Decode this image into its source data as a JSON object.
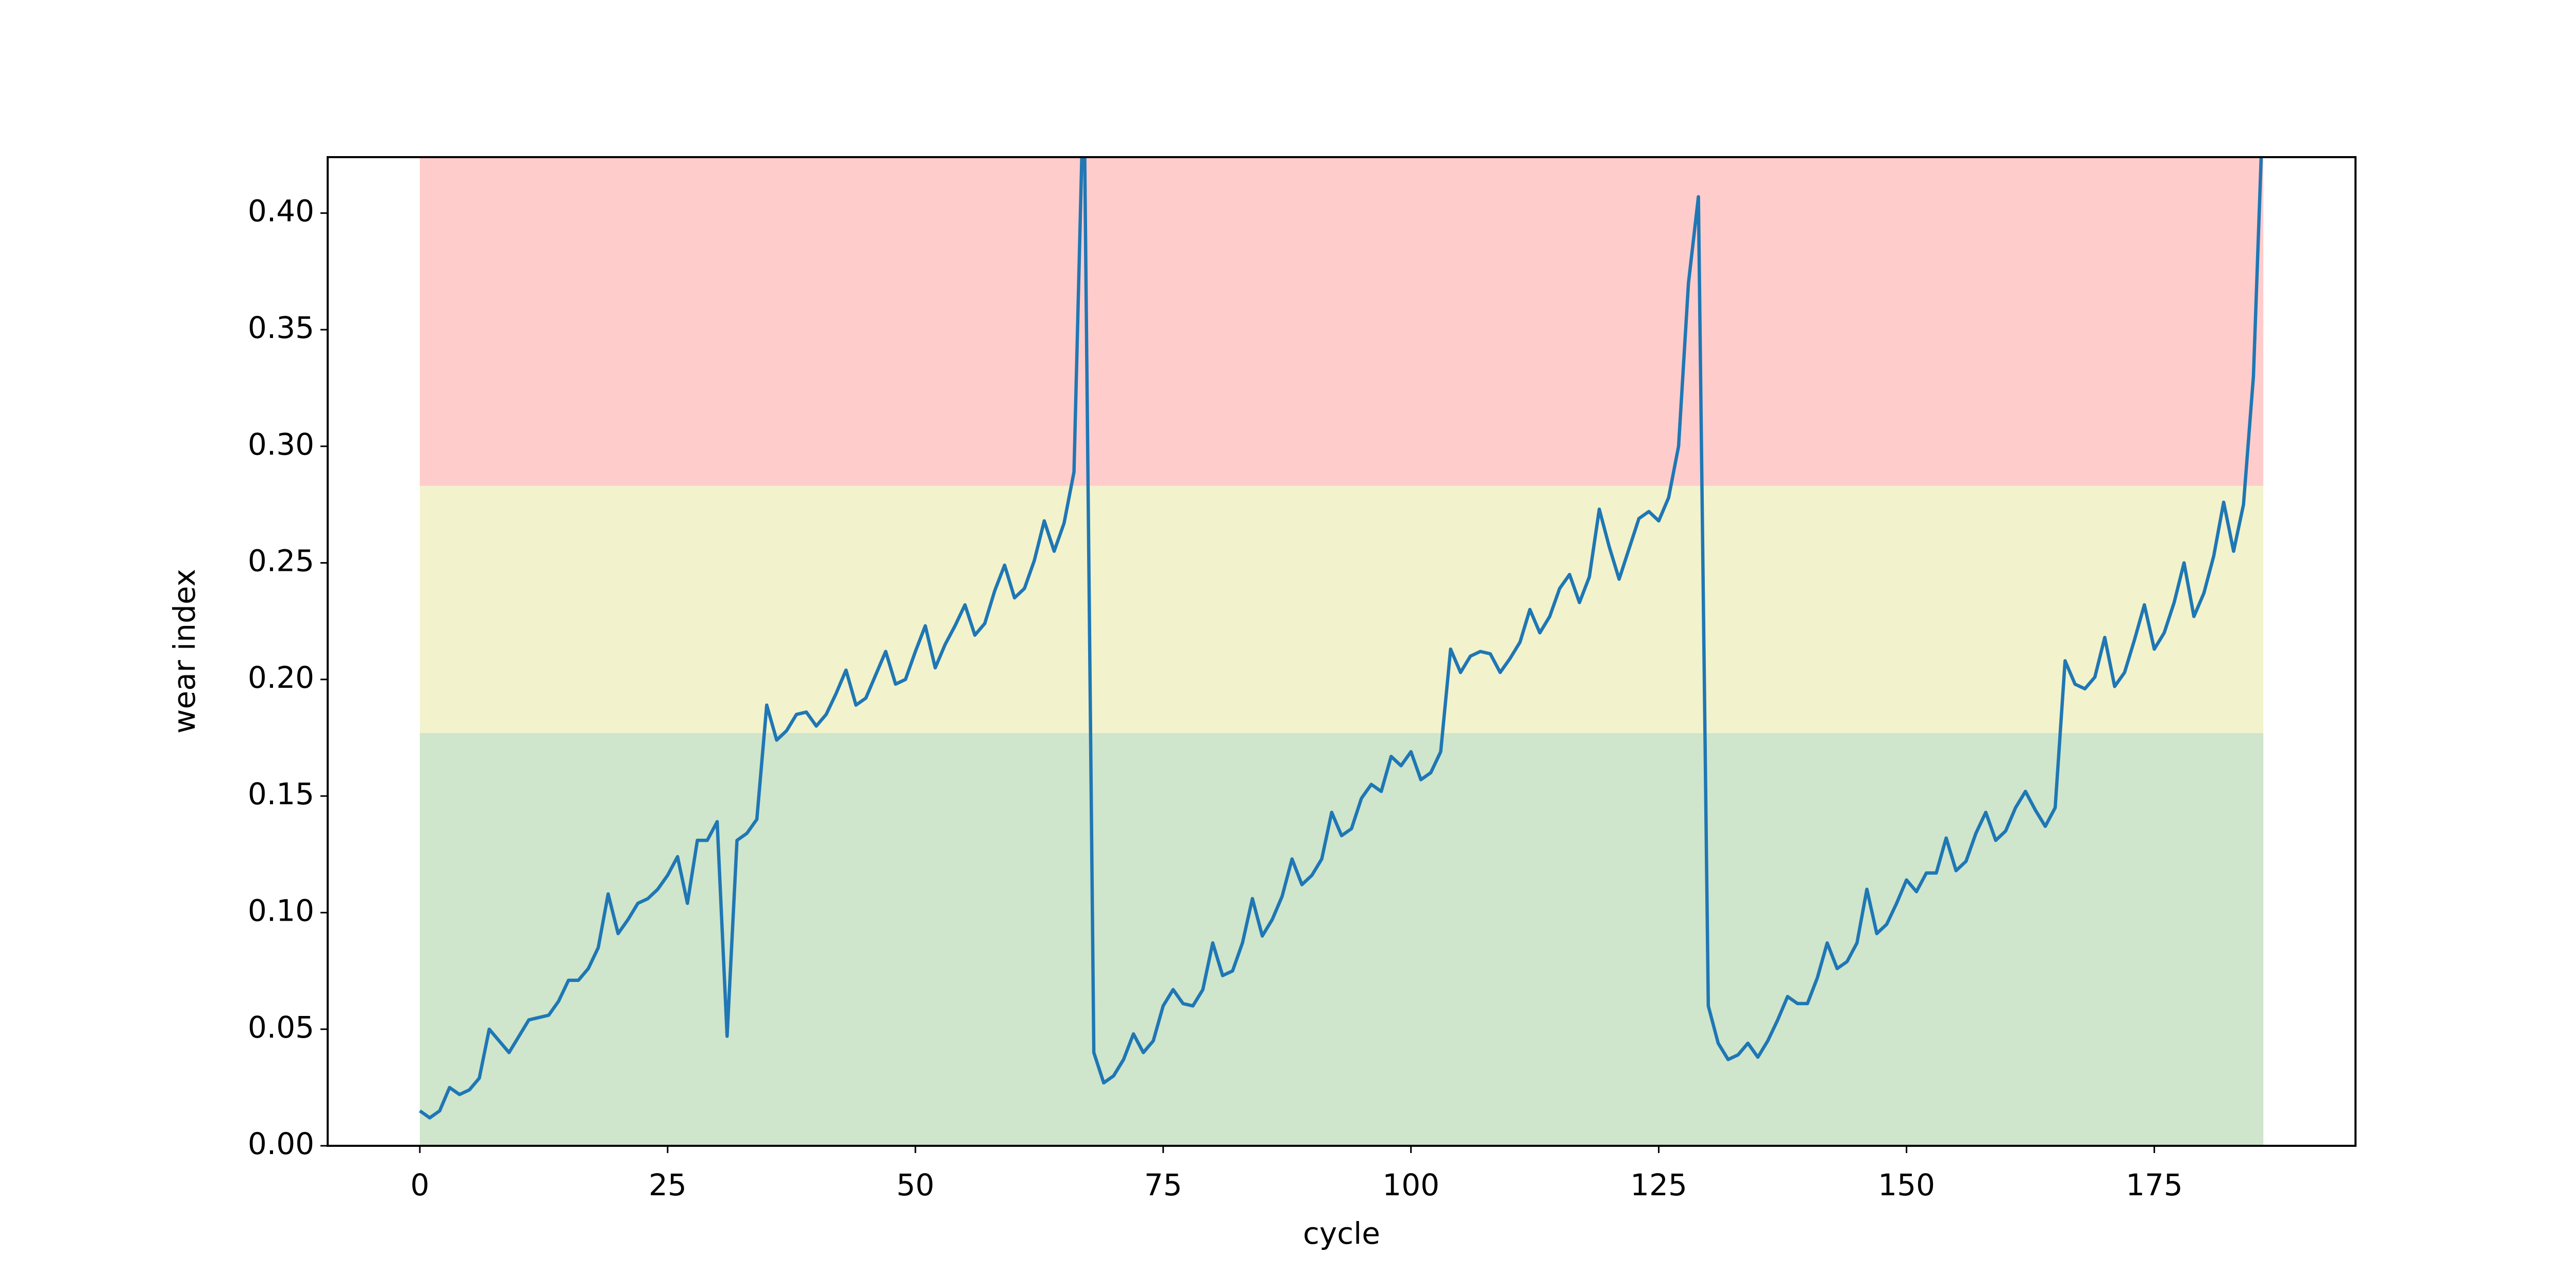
{
  "chart_data": {
    "type": "line",
    "xlabel": "cycle",
    "ylabel": "wear index",
    "x": [
      0,
      1,
      2,
      3,
      4,
      5,
      6,
      7,
      8,
      9,
      10,
      11,
      12,
      13,
      14,
      15,
      16,
      17,
      18,
      19,
      20,
      21,
      22,
      23,
      24,
      25,
      26,
      27,
      28,
      29,
      30,
      31,
      32,
      33,
      34,
      35,
      36,
      37,
      38,
      39,
      40,
      41,
      42,
      43,
      44,
      45,
      46,
      47,
      48,
      49,
      50,
      51,
      52,
      53,
      54,
      55,
      56,
      57,
      58,
      59,
      60,
      61,
      62,
      63,
      64,
      65,
      66,
      67,
      68,
      69,
      70,
      71,
      72,
      73,
      74,
      75,
      76,
      77,
      78,
      79,
      80,
      81,
      82,
      83,
      84,
      85,
      86,
      87,
      88,
      89,
      90,
      91,
      92,
      93,
      94,
      95,
      96,
      97,
      98,
      99,
      100,
      101,
      102,
      103,
      104,
      105,
      106,
      107,
      108,
      109,
      110,
      111,
      112,
      113,
      114,
      115,
      116,
      117,
      118,
      119,
      120,
      121,
      122,
      123,
      124,
      125,
      126,
      127,
      128,
      129,
      130,
      131,
      132,
      133,
      134,
      135,
      136,
      137,
      138,
      139,
      140,
      141,
      142,
      143,
      144,
      145,
      146,
      147,
      148,
      149,
      150,
      151,
      152,
      153,
      154,
      155,
      156,
      157,
      158,
      159,
      160,
      161,
      162,
      163,
      164,
      165,
      166,
      167,
      168,
      169,
      170,
      171,
      172,
      173,
      174,
      175,
      176,
      177,
      178,
      179,
      180,
      181,
      182,
      183,
      184,
      185,
      186
    ],
    "values": [
      0.015,
      0.012,
      0.015,
      0.025,
      0.022,
      0.024,
      0.029,
      0.05,
      0.045,
      0.04,
      0.047,
      0.054,
      0.055,
      0.056,
      0.062,
      0.071,
      0.071,
      0.076,
      0.085,
      0.108,
      0.091,
      0.097,
      0.104,
      0.106,
      0.11,
      0.116,
      0.124,
      0.104,
      0.131,
      0.131,
      0.139,
      0.047,
      0.131,
      0.134,
      0.14,
      0.189,
      0.174,
      0.178,
      0.185,
      0.186,
      0.18,
      0.185,
      0.194,
      0.204,
      0.189,
      0.192,
      0.202,
      0.212,
      0.198,
      0.2,
      0.212,
      0.223,
      0.205,
      0.215,
      0.223,
      0.232,
      0.219,
      0.224,
      0.238,
      0.249,
      0.235,
      0.239,
      0.251,
      0.268,
      0.255,
      0.267,
      0.289,
      0.46,
      0.04,
      0.027,
      0.03,
      0.037,
      0.048,
      0.04,
      0.045,
      0.06,
      0.067,
      0.061,
      0.06,
      0.067,
      0.087,
      0.073,
      0.075,
      0.087,
      0.106,
      0.09,
      0.097,
      0.107,
      0.123,
      0.112,
      0.116,
      0.123,
      0.143,
      0.133,
      0.136,
      0.149,
      0.155,
      0.152,
      0.167,
      0.163,
      0.169,
      0.157,
      0.16,
      0.169,
      0.213,
      0.203,
      0.21,
      0.212,
      0.211,
      0.203,
      0.209,
      0.216,
      0.23,
      0.22,
      0.227,
      0.239,
      0.245,
      0.233,
      0.244,
      0.273,
      0.257,
      0.243,
      0.256,
      0.269,
      0.272,
      0.268,
      0.278,
      0.3,
      0.37,
      0.407,
      0.06,
      0.044,
      0.037,
      0.039,
      0.044,
      0.038,
      0.045,
      0.054,
      0.064,
      0.061,
      0.061,
      0.072,
      0.087,
      0.076,
      0.079,
      0.087,
      0.11,
      0.091,
      0.095,
      0.104,
      0.114,
      0.109,
      0.117,
      0.117,
      0.132,
      0.118,
      0.122,
      0.134,
      0.143,
      0.131,
      0.135,
      0.145,
      0.152,
      0.144,
      0.137,
      0.145,
      0.208,
      0.198,
      0.196,
      0.201,
      0.218,
      0.197,
      0.203,
      0.217,
      0.232,
      0.213,
      0.22,
      0.233,
      0.25,
      0.227,
      0.237,
      0.253,
      0.276,
      0.255,
      0.275,
      0.33,
      0.45
    ],
    "color": "#1f77b4",
    "bands": [
      {
        "from": 0,
        "to": 0.177,
        "color": "#cfe5cc"
      },
      {
        "from": 0.177,
        "to": 0.283,
        "color": "#f2f2cc"
      },
      {
        "from": 0.283,
        "to": 0.424,
        "color": "#ffcccc"
      }
    ],
    "band_x": [
      0,
      186
    ],
    "xlim": [
      -9.3,
      195.3
    ],
    "ylim": [
      0,
      0.424
    ],
    "xticks": [
      0,
      25,
      50,
      75,
      100,
      125,
      150,
      175
    ],
    "yticks": [
      {
        "value": 0,
        "label": "0.00"
      },
      0.05,
      {
        "value": 0.1,
        "label": "0.10"
      },
      0.15,
      {
        "value": 0.2,
        "label": "0.20"
      },
      0.25,
      {
        "value": 0.3,
        "label": "0.30"
      },
      0.35,
      {
        "value": 0.4,
        "label": "0.40"
      }
    ],
    "grid": false
  }
}
